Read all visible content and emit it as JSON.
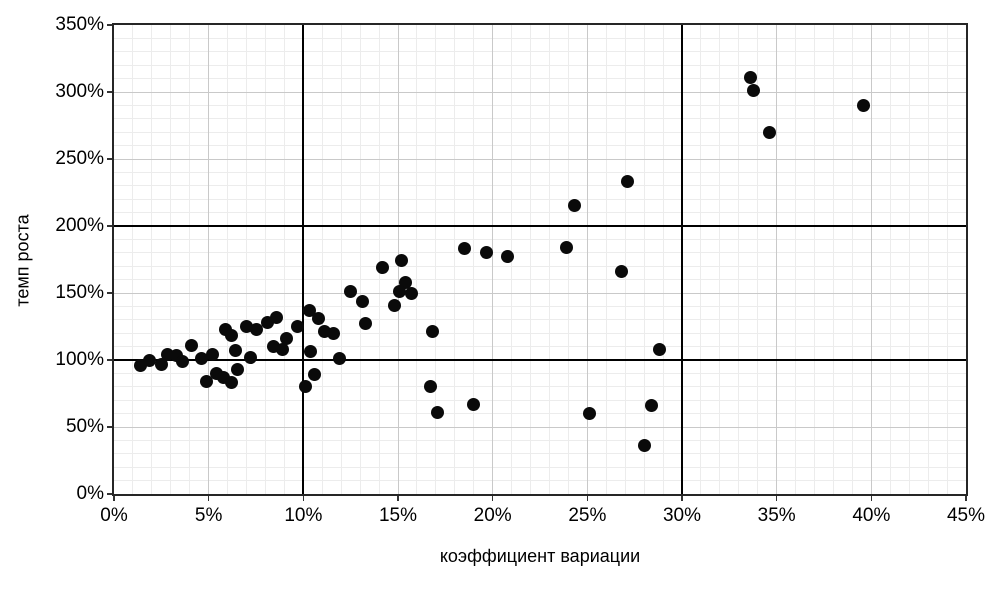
{
  "chart_data": {
    "type": "scatter",
    "title": "",
    "xlabel": "коэффициент вариации",
    "ylabel": "темп роста",
    "legend": "none",
    "grid": "minor+major",
    "x_axis": {
      "min": 0,
      "max": 45,
      "major_step": 5,
      "minor_step": 1,
      "tick_labels": [
        "0%",
        "5%",
        "10%",
        "15%",
        "20%",
        "25%",
        "30%",
        "35%",
        "40%",
        "45%"
      ]
    },
    "y_axis": {
      "min": 0,
      "max": 350,
      "major_step": 50,
      "minor_step": 10,
      "tick_labels": [
        "0%",
        "50%",
        "100%",
        "150%",
        "200%",
        "250%",
        "300%",
        "350%"
      ]
    },
    "reference_lines": {
      "x": [
        10,
        30
      ],
      "y": [
        100,
        200
      ]
    },
    "points": [
      [
        1.4,
        96
      ],
      [
        1.9,
        100
      ],
      [
        2.5,
        97
      ],
      [
        2.8,
        104
      ],
      [
        3.3,
        103
      ],
      [
        3.6,
        99
      ],
      [
        4.1,
        111
      ],
      [
        4.6,
        101
      ],
      [
        5.2,
        104
      ],
      [
        4.9,
        84
      ],
      [
        5.4,
        90
      ],
      [
        5.8,
        87
      ],
      [
        6.2,
        83
      ],
      [
        5.9,
        123
      ],
      [
        6.2,
        118
      ],
      [
        7.0,
        125
      ],
      [
        7.5,
        123
      ],
      [
        6.4,
        107
      ],
      [
        7.2,
        102
      ],
      [
        6.5,
        93
      ],
      [
        8.1,
        128
      ],
      [
        8.6,
        132
      ],
      [
        8.4,
        110
      ],
      [
        8.9,
        108
      ],
      [
        9.1,
        116
      ],
      [
        9.7,
        125
      ],
      [
        10.3,
        137
      ],
      [
        10.8,
        131
      ],
      [
        11.1,
        121
      ],
      [
        11.6,
        120
      ],
      [
        10.4,
        106
      ],
      [
        11.9,
        101
      ],
      [
        10.1,
        80
      ],
      [
        10.6,
        89
      ],
      [
        12.5,
        151
      ],
      [
        13.1,
        144
      ],
      [
        13.3,
        127
      ],
      [
        14.2,
        169
      ],
      [
        15.2,
        174
      ],
      [
        15.4,
        158
      ],
      [
        15.1,
        151
      ],
      [
        15.7,
        150
      ],
      [
        14.8,
        141
      ],
      [
        16.8,
        121
      ],
      [
        16.7,
        80
      ],
      [
        17.1,
        61
      ],
      [
        19.0,
        67
      ],
      [
        18.5,
        183
      ],
      [
        19.7,
        180
      ],
      [
        20.8,
        177
      ],
      [
        23.9,
        184
      ],
      [
        24.3,
        215
      ],
      [
        27.1,
        233
      ],
      [
        26.8,
        166
      ],
      [
        25.1,
        60
      ],
      [
        28.8,
        108
      ],
      [
        28.4,
        66
      ],
      [
        28.0,
        36
      ],
      [
        33.6,
        311
      ],
      [
        33.8,
        301
      ],
      [
        34.6,
        270
      ],
      [
        39.6,
        290
      ]
    ],
    "colors": {
      "marker": "#0a0a0a",
      "reference_line": "#000000",
      "plot_border": "#262626",
      "grid_minor": "#ececec",
      "grid_major": "#c9c9c9",
      "tick": "#333333",
      "text": "#000000",
      "background": "#ffffff"
    }
  }
}
